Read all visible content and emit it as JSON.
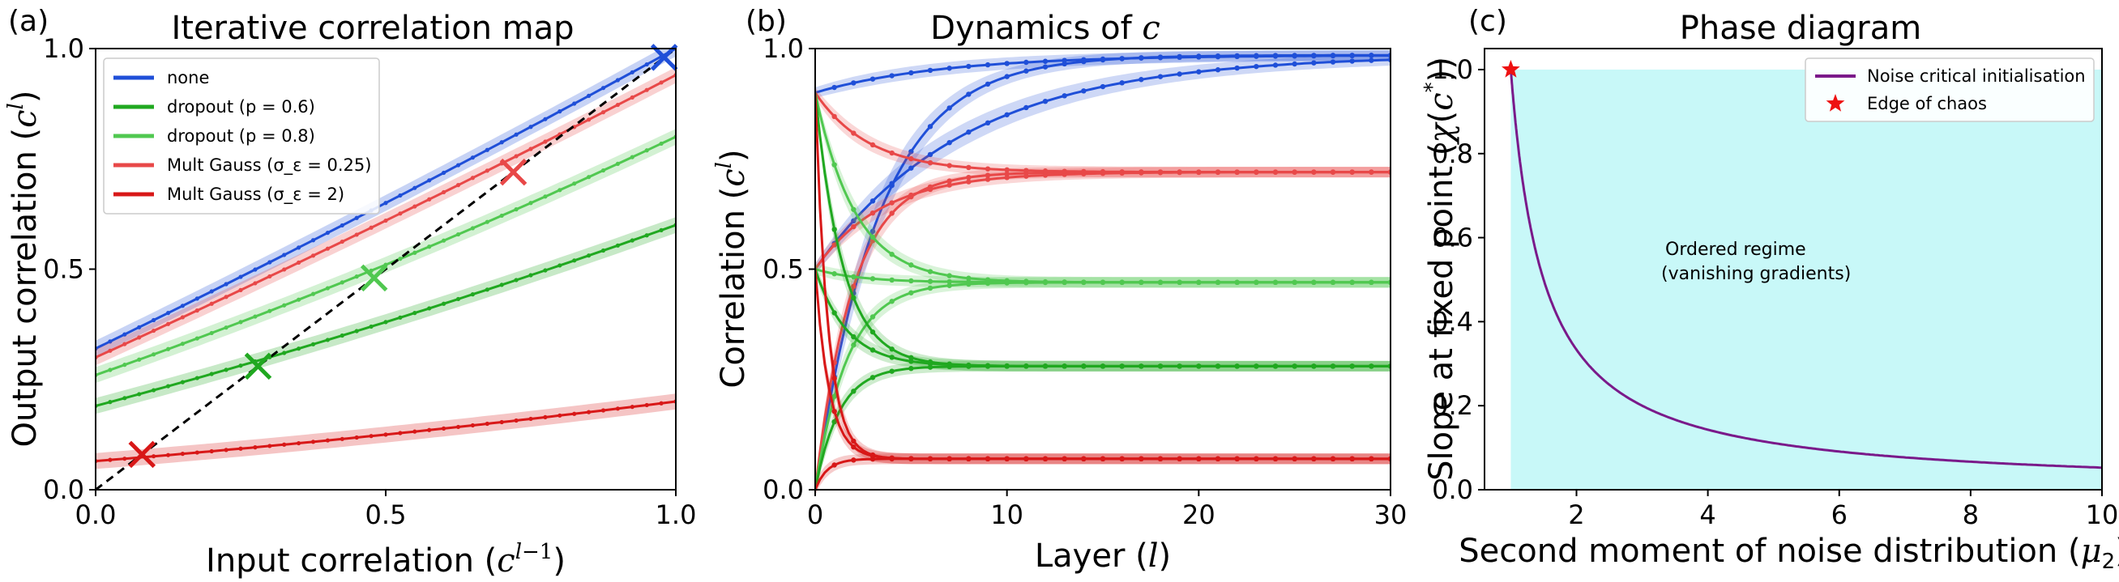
{
  "colors": {
    "none": "#1f4fd8",
    "dropout_06": "#20a820",
    "dropout_08": "#50c850",
    "mult_025": "#e84848",
    "mult_2": "#d81818",
    "noise_curve": "#7a1a8a",
    "shade": "#c8f8f8",
    "star": "#ee1111"
  },
  "chart_data": [
    {
      "type": "line",
      "panel": "(a)",
      "title": "Iterative correlation map",
      "xlabel": "Input correlation (c^{l−1})",
      "ylabel": "Output correlation (c^{l})",
      "xlim": [
        0,
        1
      ],
      "ylim": [
        0,
        1
      ],
      "xticks": [
        "0.0",
        "0.5",
        "1.0"
      ],
      "yticks": [
        "0.0",
        "0.5",
        "1.0"
      ],
      "legend_position": "upper-left",
      "identity_line": true,
      "series": [
        {
          "name": "none",
          "color_key": "none",
          "q": [
            0.32,
            0.65,
            1.0
          ],
          "fixed_point": 0.98
        },
        {
          "name": "dropout (p = 0.6)",
          "color_key": "dropout_06",
          "q": [
            0.19,
            0.38,
            0.6
          ],
          "fixed_point": 0.28
        },
        {
          "name": "dropout (p = 0.8)",
          "color_key": "dropout_08",
          "q": [
            0.26,
            0.51,
            0.8
          ],
          "fixed_point": 0.48
        },
        {
          "name": "Mult Gauss (σ_ε = 0.25)",
          "color_key": "mult_025",
          "q": [
            0.3,
            0.61,
            0.94
          ],
          "fixed_point": 0.72
        },
        {
          "name": "Mult Gauss (σ_ε = 2)",
          "color_key": "mult_2",
          "q": [
            0.065,
            0.125,
            0.2
          ],
          "fixed_point": 0.08
        }
      ]
    },
    {
      "type": "line",
      "panel": "(b)",
      "title": "Dynamics of c",
      "xlabel": "Layer (l)",
      "ylabel": "Correlation (c^{l})",
      "xlim": [
        0,
        30
      ],
      "ylim": [
        0,
        1
      ],
      "xticks": [
        "0",
        "10",
        "20",
        "30"
      ],
      "yticks": [
        "0.0",
        "0.5",
        "1.0"
      ],
      "starts": [
        0.0,
        0.5,
        0.9
      ],
      "series": [
        {
          "color_key": "none",
          "fixed_point": 0.985,
          "rates": [
            0.74,
            0.88,
            0.86
          ]
        },
        {
          "color_key": "mult_025",
          "fixed_point": 0.72,
          "rates": [
            0.6,
            0.75,
            0.7
          ]
        },
        {
          "color_key": "dropout_08",
          "fixed_point": 0.47,
          "rates": [
            0.55,
            0.65,
            0.62
          ]
        },
        {
          "color_key": "dropout_06",
          "fixed_point": 0.28,
          "rates": [
            0.45,
            0.55,
            0.5
          ]
        },
        {
          "color_key": "mult_2",
          "fixed_point": 0.07,
          "rates": [
            0.2,
            0.25,
            0.22
          ]
        }
      ]
    },
    {
      "type": "line",
      "panel": "(c)",
      "title": "Phase diagram",
      "xlabel": "Second moment of noise distribution (μ₂)",
      "ylabel": "Slope at fixed point (χ(c*))",
      "xlim": [
        0.6,
        10
      ],
      "ylim": [
        0,
        1.05
      ],
      "xticks": [
        "2",
        "4",
        "6",
        "8",
        "10"
      ],
      "yticks": [
        "0.0",
        "0.2",
        "0.4",
        "0.6",
        "0.8",
        "1.0"
      ],
      "legend_position": "upper-right",
      "series": [
        {
          "name": "Noise critical initialisation",
          "color_key": "noise_curve",
          "x_range": [
            1,
            10
          ],
          "formula": "1/(2*mu2-1)"
        },
        {
          "name": "Edge of chaos",
          "color_key": "star",
          "point": [
            1,
            1
          ]
        }
      ],
      "region": {
        "label_line1": "Ordered regime",
        "label_line2": "(vanishing gradients)",
        "x_range": [
          1,
          10
        ],
        "y_range": [
          0,
          1
        ]
      }
    }
  ]
}
